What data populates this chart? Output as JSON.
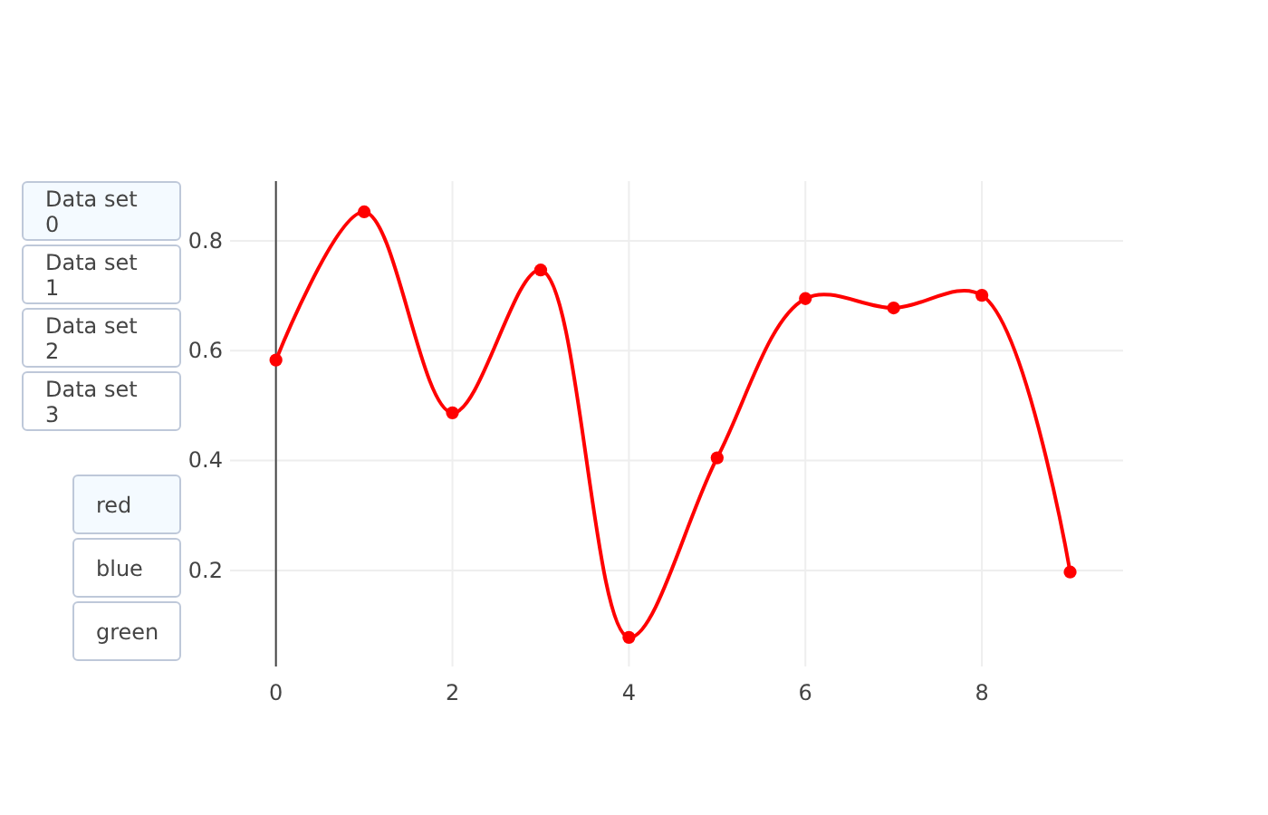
{
  "chart_data": {
    "type": "line",
    "x": [
      0,
      1,
      2,
      3,
      4,
      5,
      6,
      7,
      8,
      9
    ],
    "series": [
      {
        "color": "#ff0000",
        "values": [
          0.583,
          0.853,
          0.487,
          0.747,
          0.078,
          0.405,
          0.695,
          0.678,
          0.701,
          0.197
        ]
      }
    ],
    "xlim": [
      -0.52,
      9.6
    ],
    "xticks": [
      0,
      2,
      4,
      6,
      8
    ],
    "ylim": [
      0.025,
      0.909
    ],
    "yticks": [
      0.2,
      0.4,
      0.6,
      0.8
    ],
    "grid": true,
    "marker": "circle",
    "line_style": "solid",
    "annotations": [
      "Data set 0",
      "Data set 1",
      "Data set 2",
      "Data set 3",
      "red",
      "blue",
      "green"
    ]
  }
}
